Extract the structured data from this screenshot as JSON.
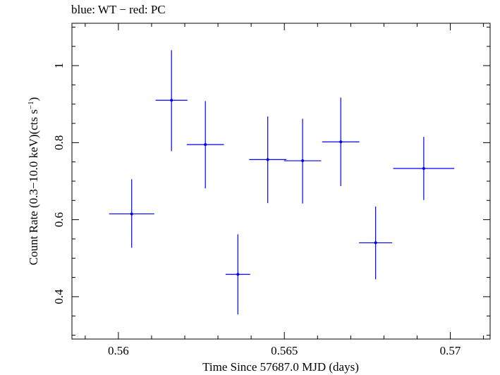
{
  "chart_data": {
    "type": "scatter",
    "title": "blue: WT − red: PC",
    "xlabel": "Time Since 57687.0 MJD (days)",
    "ylabel_main": "Count Rate (0.3−10.0 keV)(cts s",
    "ylabel_sup": "−1",
    "ylabel_end": ")",
    "xlim": [
      0.5586,
      0.5712
    ],
    "ylim": [
      0.29,
      1.11
    ],
    "x_ticks": [
      0.56,
      0.565,
      0.57
    ],
    "x_tick_labels": [
      "0.56",
      "0.565",
      "0.57"
    ],
    "y_ticks": [
      0.4,
      0.6,
      0.8,
      1.0
    ],
    "y_tick_labels": [
      "0.4",
      "0.6",
      "0.8",
      "1"
    ],
    "series": [
      {
        "name": "WT",
        "color": "#0000ee",
        "points": [
          {
            "x": 0.5604,
            "xerr": 0.00068,
            "y": 0.615,
            "ylo": 0.527,
            "yhi": 0.705
          },
          {
            "x": 0.5616,
            "xerr": 0.00048,
            "y": 0.91,
            "ylo": 0.778,
            "yhi": 1.04
          },
          {
            "x": 0.56262,
            "xerr": 0.00056,
            "y": 0.795,
            "ylo": 0.681,
            "yhi": 0.908
          },
          {
            "x": 0.5636,
            "xerr": 0.00037,
            "y": 0.458,
            "ylo": 0.354,
            "yhi": 0.562
          },
          {
            "x": 0.5645,
            "xerr": 0.00056,
            "y": 0.756,
            "ylo": 0.643,
            "yhi": 0.868
          },
          {
            "x": 0.56555,
            "xerr": 0.00056,
            "y": 0.753,
            "ylo": 0.642,
            "yhi": 0.862
          },
          {
            "x": 0.5667,
            "xerr": 0.00056,
            "y": 0.802,
            "ylo": 0.687,
            "yhi": 0.917
          },
          {
            "x": 0.56775,
            "xerr": 0.0005,
            "y": 0.54,
            "ylo": 0.445,
            "yhi": 0.634
          },
          {
            "x": 0.5692,
            "xerr": 0.00092,
            "y": 0.733,
            "ylo": 0.651,
            "yhi": 0.815
          }
        ]
      }
    ]
  }
}
